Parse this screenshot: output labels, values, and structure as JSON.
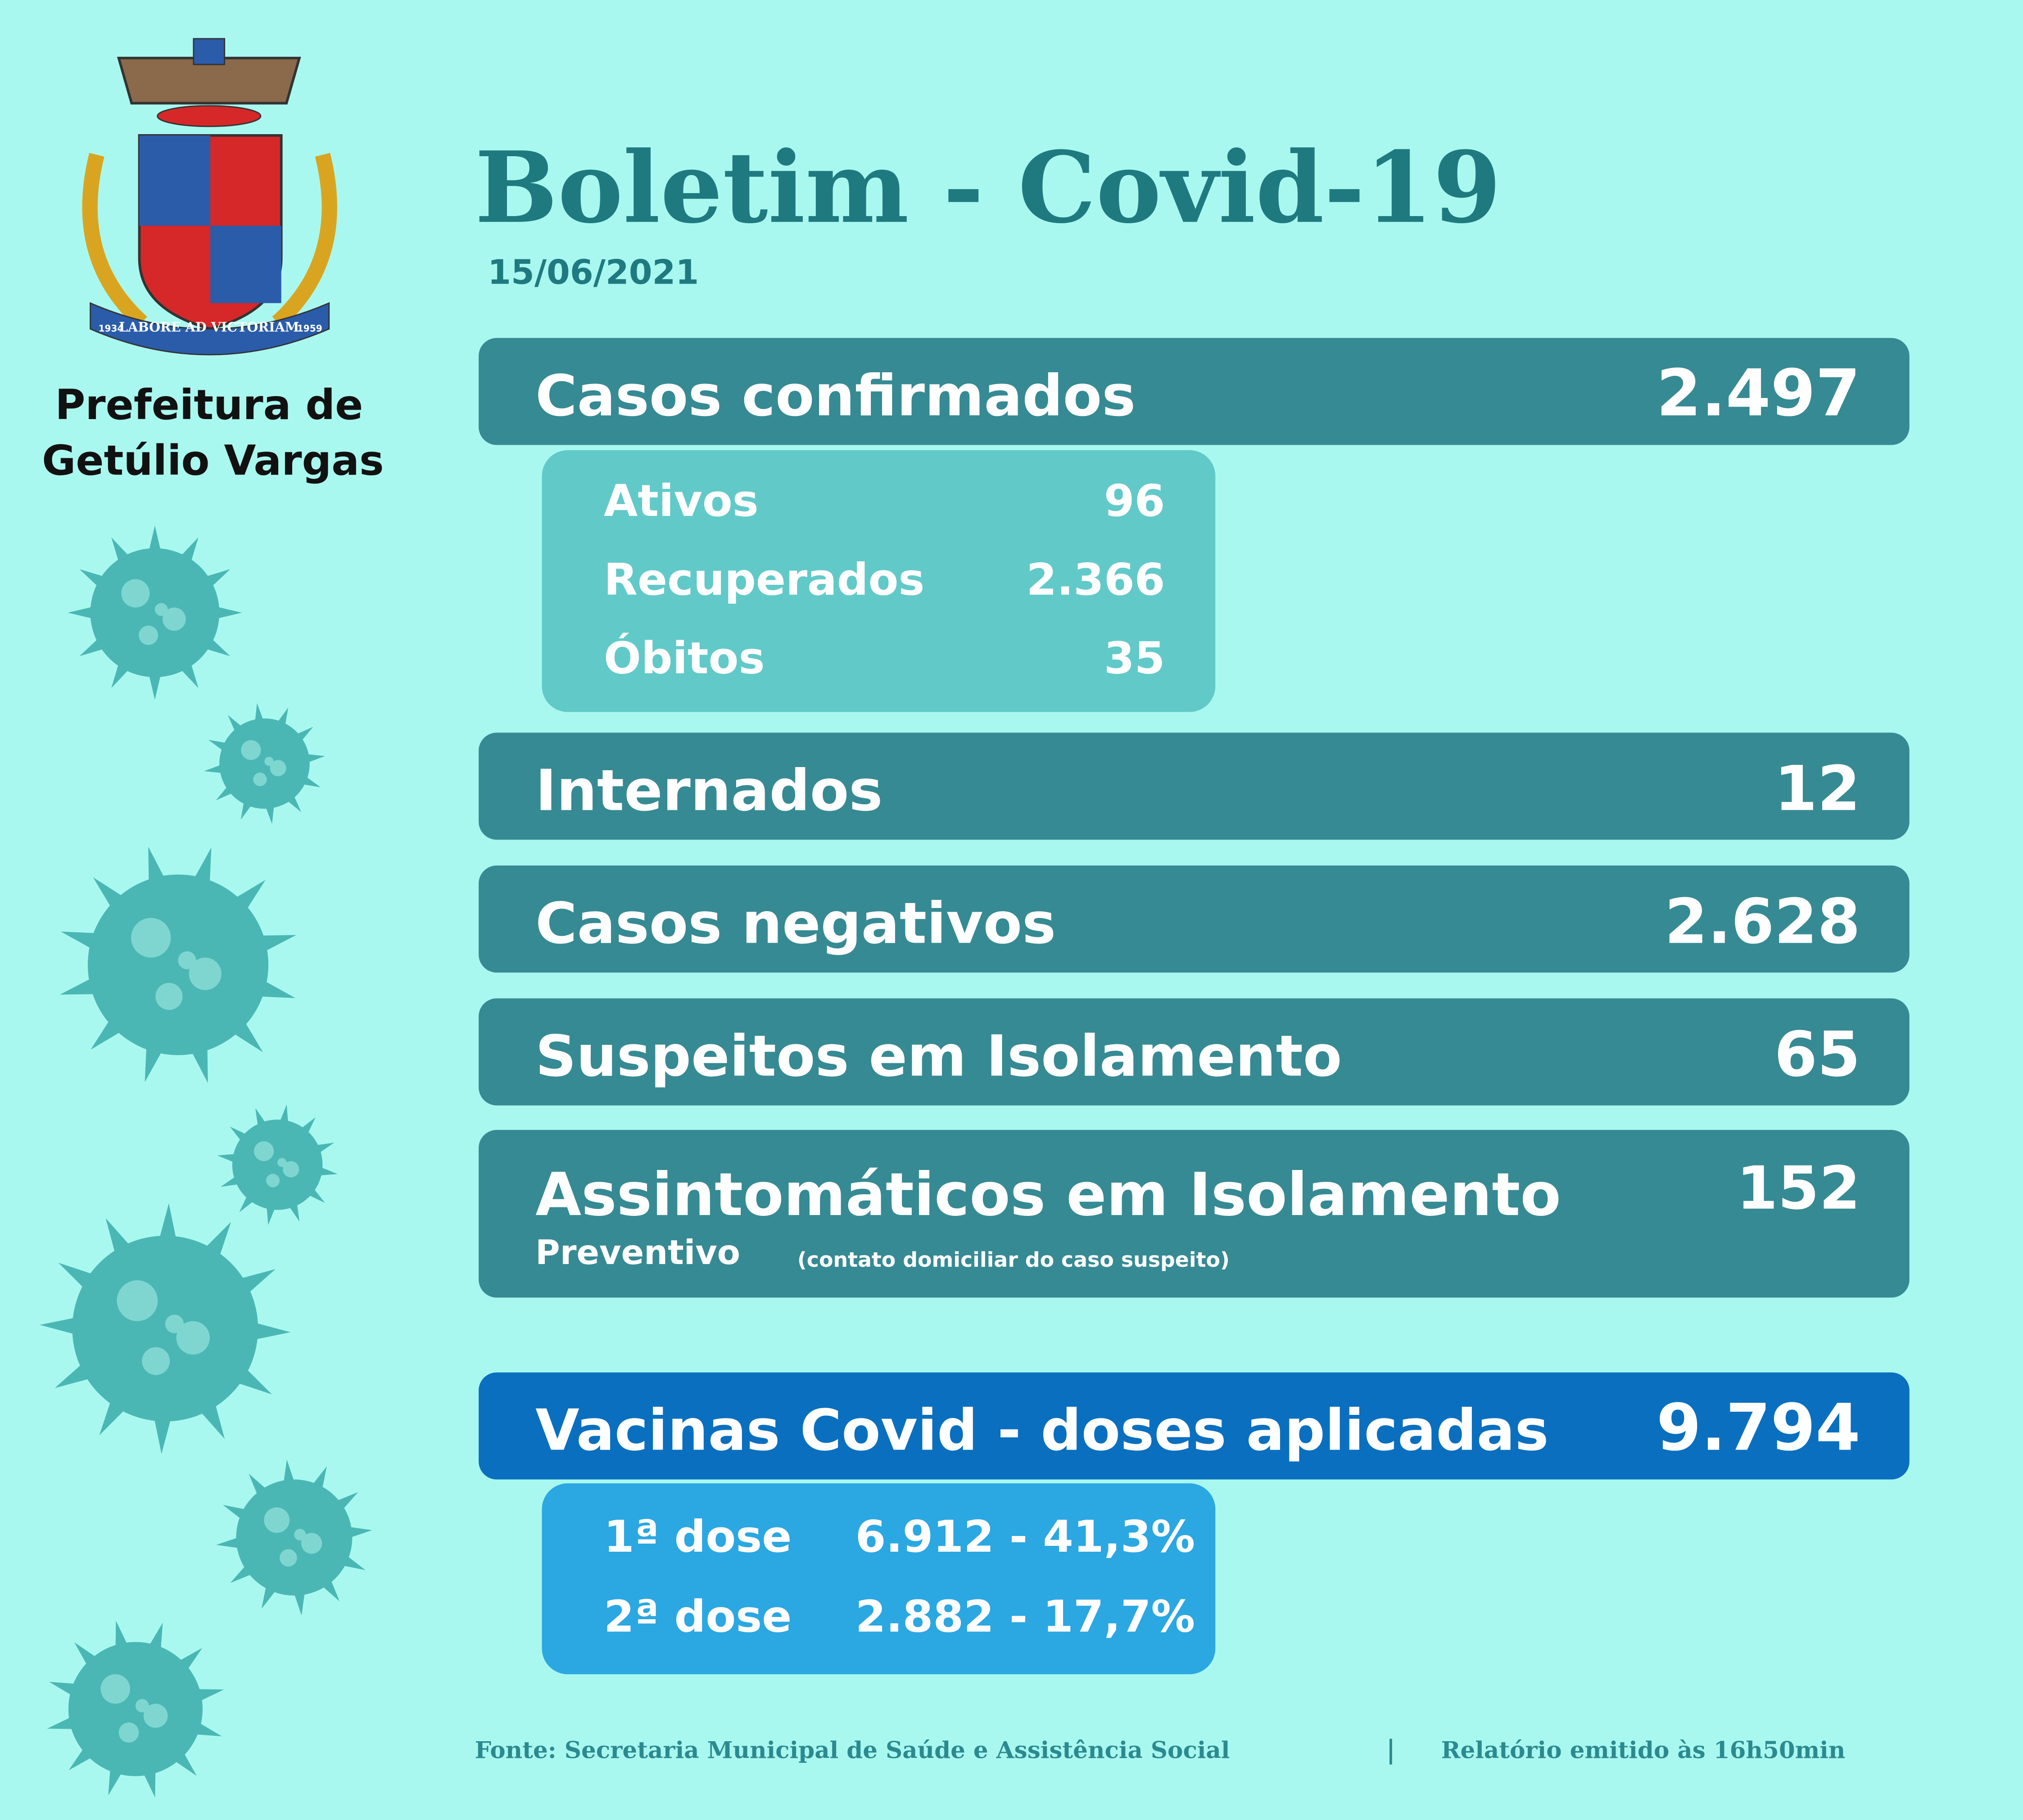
{
  "header": {
    "title": "Boletim - Covid-19",
    "date": "15/06/2021",
    "org_line1": "Prefeitura de",
    "org_line2": "Getúlio Vargas",
    "logo_motto": "LABORE AD VICTORIAM",
    "logo_year_left": "1934",
    "logo_year_right": "1959"
  },
  "confirmed": {
    "label": "Casos confirmados",
    "value": "2.497",
    "details": [
      {
        "label": "Ativos",
        "value": "96"
      },
      {
        "label": "Recuperados",
        "value": "2.366"
      },
      {
        "label": "Óbitos",
        "value": "35"
      }
    ]
  },
  "stats": [
    {
      "label": "Internados",
      "value": "12"
    },
    {
      "label": "Casos negativos",
      "value": "2.628"
    },
    {
      "label": "Suspeitos em Isolamento",
      "value": "65"
    }
  ],
  "asymptomatic": {
    "label": "Assintomáticos em Isolamento",
    "value": "152",
    "sublabel": "Preventivo",
    "note": "(contato domiciliar do caso suspeito)"
  },
  "vaccines": {
    "label": "Vacinas Covid - doses aplicadas",
    "value": "9.794",
    "doses": [
      {
        "label": "1ª dose",
        "value": "6.912 - 41,3%"
      },
      {
        "label": "2ª dose",
        "value": "2.882 - 17,7%"
      }
    ]
  },
  "footer": {
    "source": "Fonte: Secretaria Municipal de Saúde e Assistência Social",
    "report_time": "Relatório emitido às 16h50min"
  }
}
